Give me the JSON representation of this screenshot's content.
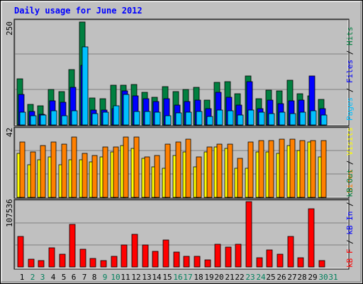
{
  "title": "Daily usage for June 2012",
  "colors": {
    "background": "#C0C0C0",
    "title": "#0000FF",
    "hits": "#008040",
    "files": "#0000FF",
    "pages": "#00C0FF",
    "visits": "#FFFF00",
    "sites": "#FF8000",
    "kbin": "#008040",
    "kbout": "#0000FF",
    "kbf": "#FF0000",
    "weekday_label": "#000000",
    "weekend_label": "#00805C"
  },
  "legend": {
    "top": [
      {
        "text": "Pages",
        "color": "#00C0FF"
      },
      {
        "text": " / ",
        "color": "#000000"
      },
      {
        "text": "Files",
        "color": "#0000FF"
      },
      {
        "text": " / ",
        "color": "#000000"
      },
      {
        "text": "Hits",
        "color": "#008040"
      }
    ],
    "middle": [
      {
        "text": "Sites",
        "color": "#FF8000"
      },
      {
        "text": " / ",
        "color": "#000000"
      },
      {
        "text": "Visits",
        "color": "#FFFF00"
      }
    ],
    "bottom": [
      {
        "text": "kB F",
        "color": "#FF0000"
      },
      {
        "text": " / ",
        "color": "#000000"
      },
      {
        "text": "kB In",
        "color": "#0000FF"
      },
      {
        "text": " / ",
        "color": "#000000"
      },
      {
        "text": "kB Out",
        "color": "#008040"
      }
    ]
  },
  "chart_data": [
    {
      "type": "bar",
      "panel": "hits-files-pages",
      "ymax_label": "250",
      "ylim": [
        0,
        250
      ],
      "categories": [
        "1",
        "2",
        "3",
        "4",
        "5",
        "6",
        "7",
        "8",
        "9",
        "10",
        "11",
        "12",
        "13",
        "14",
        "15",
        "16",
        "17",
        "18",
        "19",
        "20",
        "21",
        "22",
        "23",
        "24",
        "25",
        "26",
        "27",
        "28",
        "29",
        "30",
        "31"
      ],
      "series": [
        {
          "name": "Hits",
          "values": [
            112,
            50,
            46,
            86,
            80,
            134,
            248,
            65,
            63,
            96,
            96,
            98,
            78,
            66,
            92,
            80,
            86,
            90,
            60,
            102,
            104,
            76,
            118,
            64,
            84,
            82,
            108,
            76,
            70,
            62,
            0
          ]
        },
        {
          "name": "Files",
          "values": [
            74,
            32,
            26,
            58,
            54,
            90,
            144,
            36,
            36,
            40,
            82,
            70,
            64,
            56,
            64,
            48,
            56,
            60,
            40,
            78,
            66,
            48,
            104,
            40,
            60,
            52,
            58,
            60,
            118,
            40,
            0
          ]
        },
        {
          "name": "Pages",
          "values": [
            31,
            22,
            24,
            34,
            22,
            34,
            188,
            28,
            30,
            46,
            74,
            32,
            32,
            31,
            22,
            29,
            30,
            32,
            20,
            36,
            34,
            24,
            36,
            30,
            28,
            30,
            28,
            30,
            34,
            24,
            0
          ]
        }
      ]
    },
    {
      "type": "bar",
      "panel": "visits-sites",
      "ymax_label": "42",
      "ylim": [
        0,
        42
      ],
      "categories": [
        "1",
        "2",
        "3",
        "4",
        "5",
        "6",
        "7",
        "8",
        "9",
        "10",
        "11",
        "12",
        "13",
        "14",
        "15",
        "16",
        "17",
        "18",
        "19",
        "20",
        "21",
        "22",
        "23",
        "24",
        "25",
        "26",
        "27",
        "28",
        "29",
        "30",
        "31"
      ],
      "series": [
        {
          "name": "Visits",
          "values": [
            27,
            20,
            23,
            25,
            20,
            23,
            23,
            22,
            25,
            28,
            32,
            30,
            24,
            19,
            18,
            26,
            28,
            19,
            28,
            31,
            30,
            18,
            18,
            28,
            28,
            27,
            32,
            29,
            34,
            25,
            0
          ]
        },
        {
          "name": "Sites",
          "values": [
            34,
            28,
            32,
            34,
            33,
            37,
            27,
            26,
            31,
            31,
            37,
            37,
            25,
            26,
            33,
            34,
            36,
            25,
            31,
            33,
            33,
            24,
            34,
            35,
            35,
            36,
            36,
            35,
            35,
            35,
            0
          ]
        }
      ]
    },
    {
      "type": "bar",
      "panel": "kb-traffic",
      "ymax_label": "107536",
      "ylim": [
        0,
        107536
      ],
      "categories": [
        "1",
        "2",
        "3",
        "4",
        "5",
        "6",
        "7",
        "8",
        "9",
        "10",
        "11",
        "12",
        "13",
        "14",
        "15",
        "16",
        "17",
        "18",
        "19",
        "20",
        "21",
        "22",
        "23",
        "24",
        "25",
        "26",
        "27",
        "28",
        "29",
        "30",
        "31"
      ],
      "series": [
        {
          "name": "kB F",
          "values": [
            50000,
            13000,
            10000,
            32000,
            21000,
            70000,
            29000,
            14000,
            10000,
            17000,
            36000,
            54000,
            36000,
            26000,
            45000,
            24000,
            18000,
            17000,
            12000,
            37000,
            33000,
            37000,
            107536,
            15000,
            28000,
            21000,
            50000,
            15000,
            96000,
            11000,
            0
          ]
        }
      ]
    }
  ],
  "weekend_days": [
    2,
    3,
    9,
    10,
    16,
    17,
    23,
    24,
    30,
    31
  ]
}
